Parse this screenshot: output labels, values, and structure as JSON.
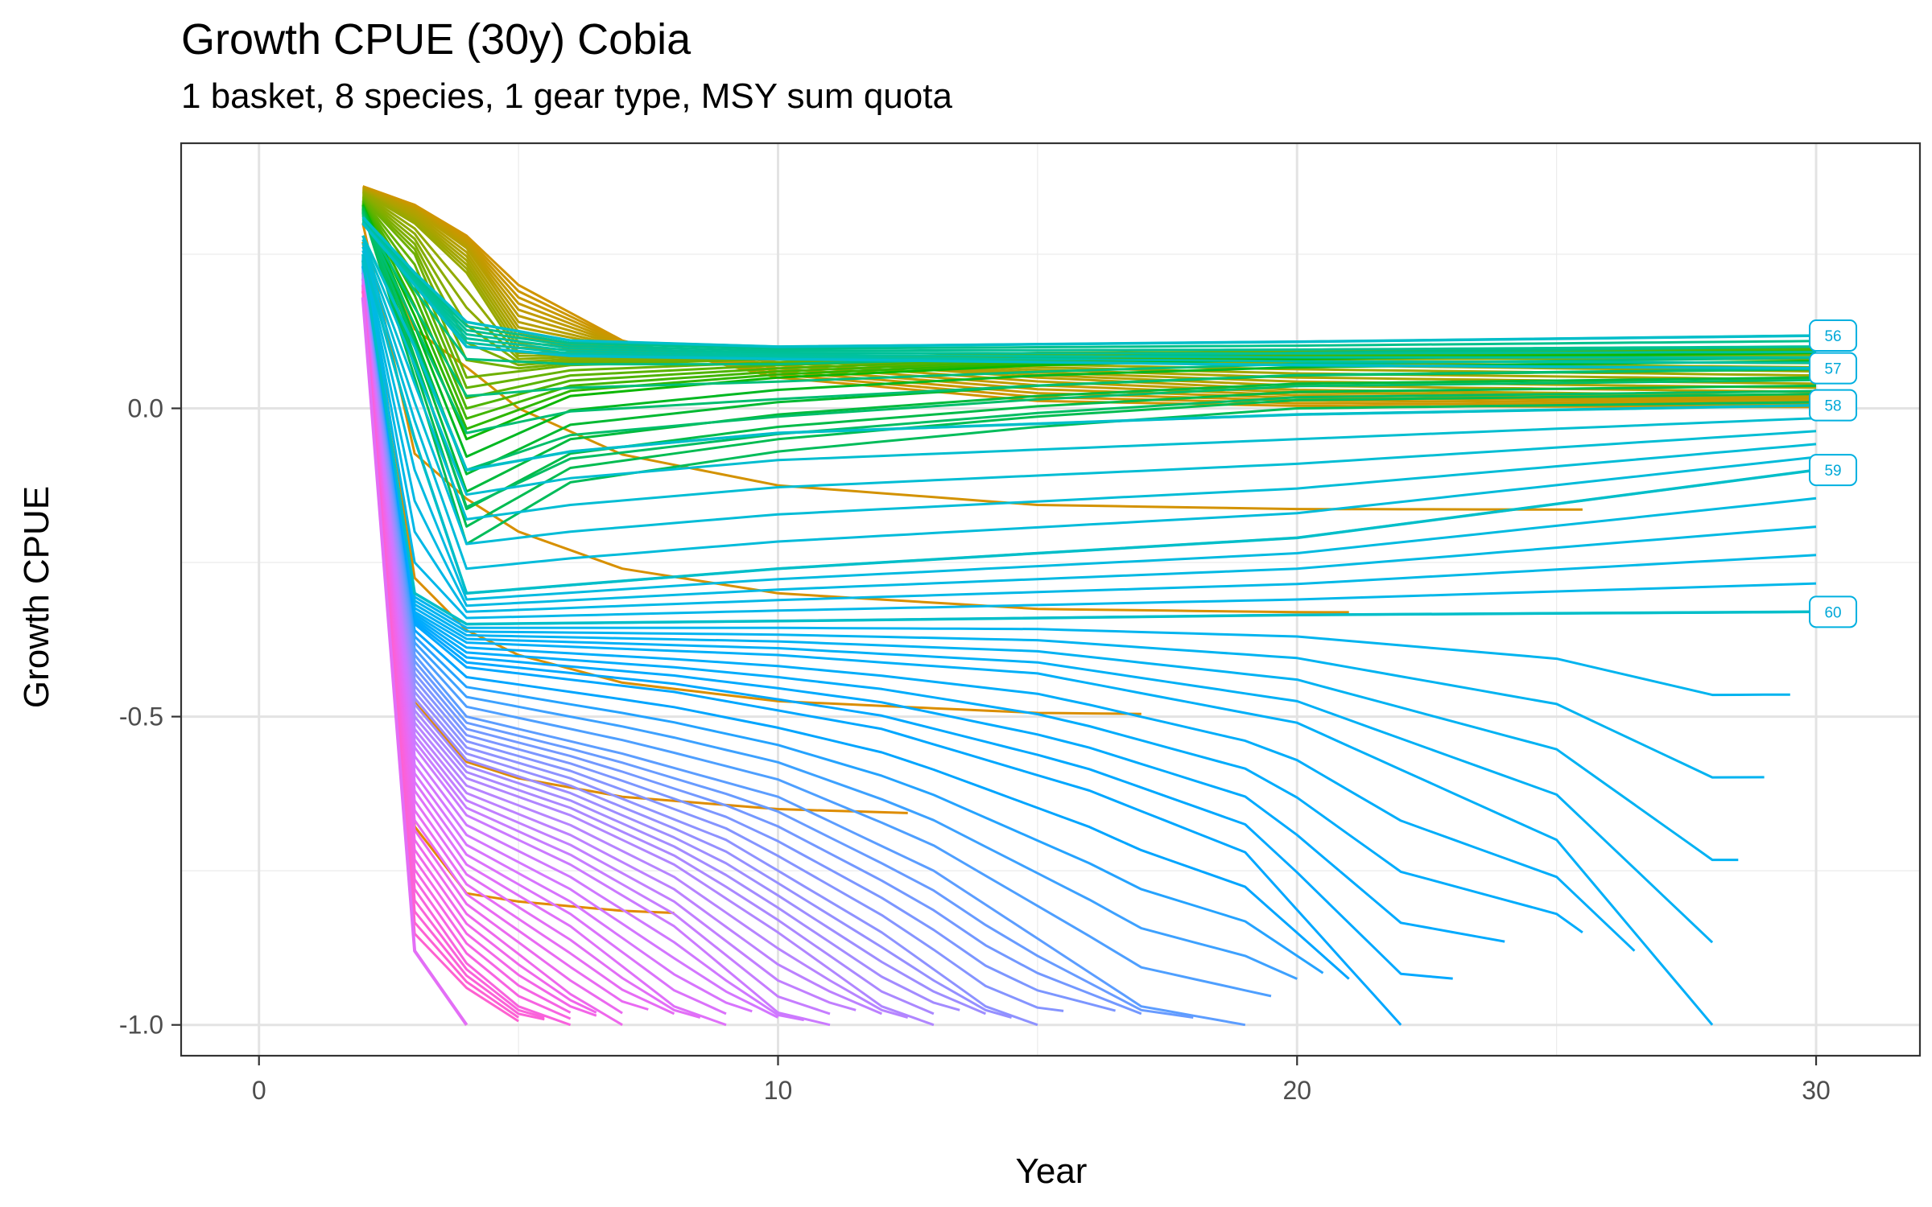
{
  "chart_data": {
    "type": "line",
    "title": "Growth CPUE (30y) Cobia",
    "subtitle": "1 basket, 8 species, 1 gear type, MSY sum quota",
    "xlabel": "Year",
    "ylabel": "Growth CPUE",
    "xlim": [
      -1.5,
      32
    ],
    "ylim": [
      -1.05,
      0.43
    ],
    "x_ticks": [
      0,
      10,
      20,
      30
    ],
    "x_tick_labels": [
      "0",
      "10",
      "20",
      "30"
    ],
    "y_ticks": [
      -1.0,
      -0.5,
      0.0
    ],
    "y_tick_labels": [
      "-1.0",
      "-0.5",
      "0.0"
    ],
    "grid": true,
    "legend": "none",
    "line_color_hue_range": [
      15,
      375
    ],
    "series": [
      {
        "name": "56",
        "x": [
          2,
          3,
          4,
          6,
          10,
          20,
          30
        ],
        "y": [
          0.31,
          0.22,
          0.14,
          0.11,
          0.1,
          0.108,
          0.118
        ]
      },
      {
        "name": "57",
        "x": [
          2,
          3,
          4,
          6,
          10,
          20,
          30
        ],
        "y": [
          0.3,
          0.2,
          0.1,
          0.085,
          0.08,
          0.07,
          0.065
        ]
      },
      {
        "name": "58",
        "x": [
          2,
          3,
          4,
          6,
          10,
          20,
          30
        ],
        "y": [
          0.28,
          0.1,
          -0.1,
          -0.07,
          -0.04,
          -0.01,
          0.005
        ]
      },
      {
        "name": "59",
        "x": [
          2,
          3,
          4,
          10,
          20,
          30
        ],
        "y": [
          0.25,
          -0.05,
          -0.3,
          -0.26,
          -0.21,
          -0.1
        ]
      },
      {
        "name": "60",
        "x": [
          2,
          3,
          4,
          10,
          20,
          30
        ],
        "y": [
          0.24,
          -0.3,
          -0.35,
          -0.345,
          -0.335,
          -0.33
        ]
      },
      {
        "name": "",
        "x": [
          2,
          3,
          4,
          10,
          15,
          20,
          25,
          28
        ],
        "y": [
          0.23,
          -0.33,
          -0.38,
          -0.4,
          -0.43,
          -0.51,
          -0.7,
          -1.0
        ]
      },
      {
        "name": "",
        "x": [
          2,
          3,
          4,
          8,
          12,
          16,
          19,
          22
        ],
        "y": [
          0.23,
          -0.35,
          -0.42,
          -0.46,
          -0.52,
          -0.62,
          -0.72,
          -1.0
        ]
      },
      {
        "name": "",
        "x": [
          2,
          3,
          4,
          7,
          10,
          13,
          17,
          19
        ],
        "y": [
          0.22,
          -0.4,
          -0.5,
          -0.56,
          -0.63,
          -0.75,
          -0.97,
          -1.0
        ]
      },
      {
        "name": "",
        "x": [
          2,
          3,
          4,
          6,
          9,
          12,
          14,
          15
        ],
        "y": [
          0.22,
          -0.45,
          -0.55,
          -0.6,
          -0.7,
          -0.85,
          -0.97,
          -1.0
        ]
      },
      {
        "name": "",
        "x": [
          2,
          3,
          4,
          6,
          8,
          10,
          12,
          13
        ],
        "y": [
          0.21,
          -0.5,
          -0.6,
          -0.66,
          -0.74,
          -0.85,
          -0.97,
          -1.0
        ]
      },
      {
        "name": "",
        "x": [
          2,
          3,
          4,
          6,
          8,
          10,
          11
        ],
        "y": [
          0.21,
          -0.55,
          -0.66,
          -0.74,
          -0.84,
          -0.98,
          -1.0
        ]
      },
      {
        "name": "",
        "x": [
          2,
          3,
          4,
          6,
          8,
          9
        ],
        "y": [
          0.2,
          -0.62,
          -0.74,
          -0.84,
          -0.97,
          -1.0
        ]
      },
      {
        "name": "",
        "x": [
          2,
          3,
          4,
          6,
          7
        ],
        "y": [
          0.2,
          -0.7,
          -0.82,
          -0.95,
          -1.0
        ]
      },
      {
        "name": "",
        "x": [
          2,
          3,
          4,
          5,
          6
        ],
        "y": [
          0.19,
          -0.78,
          -0.9,
          -0.97,
          -1.0
        ]
      },
      {
        "name": "",
        "x": [
          2,
          3,
          4,
          5
        ],
        "y": [
          0.19,
          -0.87,
          -0.95,
          -1.0
        ]
      },
      {
        "name": "",
        "x": [
          2,
          3,
          4
        ],
        "y": [
          0.18,
          -0.88,
          -1.0
        ]
      },
      {
        "name": "",
        "x": [
          2,
          3,
          4,
          5,
          7,
          10,
          15,
          20,
          30
        ],
        "y": [
          0.36,
          0.33,
          0.28,
          0.2,
          0.11,
          0.05,
          0.012,
          0.004,
          0.002
        ]
      },
      {
        "name": "",
        "x": [
          2,
          3,
          4,
          5,
          7,
          10,
          15,
          20,
          30
        ],
        "y": [
          0.355,
          0.32,
          0.26,
          0.14,
          0.1,
          0.08,
          0.05,
          0.03,
          0.02
        ]
      },
      {
        "name": "",
        "x": [
          2,
          3,
          4,
          5,
          7,
          10,
          15,
          20,
          30
        ],
        "y": [
          0.35,
          0.3,
          0.22,
          0.09,
          0.09,
          0.085,
          0.075,
          0.07,
          0.06
        ]
      },
      {
        "name": "",
        "x": [
          2,
          3,
          4,
          6,
          10,
          15,
          20,
          30
        ],
        "y": [
          0.34,
          0.25,
          0.05,
          0.07,
          0.08,
          0.09,
          0.092,
          0.1
        ]
      },
      {
        "name": "",
        "x": [
          2,
          3,
          4,
          6,
          10,
          15,
          20,
          30
        ],
        "y": [
          0.33,
          0.15,
          -0.05,
          0.02,
          0.05,
          0.07,
          0.08,
          0.09
        ]
      },
      {
        "name": "",
        "x": [
          2,
          3,
          4,
          6,
          10,
          15,
          20,
          30
        ],
        "y": [
          0.32,
          0.05,
          -0.22,
          -0.12,
          -0.07,
          -0.03,
          0.0,
          0.01
        ]
      }
    ],
    "annotations": [
      "56",
      "57",
      "58",
      "59",
      "60"
    ]
  }
}
